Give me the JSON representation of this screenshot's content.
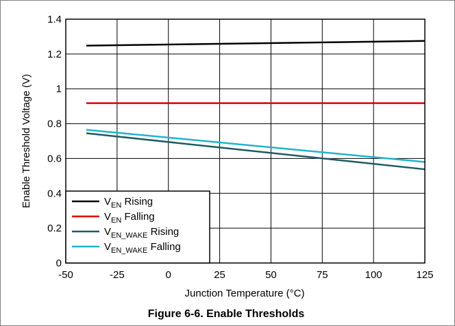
{
  "chart_data": {
    "type": "line",
    "title": "",
    "caption": "Figure 6-6. Enable Thresholds",
    "xlabel": "Junction Temperature (°C)",
    "ylabel": "Enable Threshold Voltage (V)",
    "xlim": [
      -50,
      125
    ],
    "ylim": [
      0,
      1.4
    ],
    "x_ticks": [
      -50,
      -25,
      0,
      25,
      50,
      75,
      100,
      125
    ],
    "y_ticks": [
      0,
      0.2,
      0.4,
      0.6,
      0.8,
      1,
      1.2,
      1.4
    ],
    "x_tick_labels": [
      "-50",
      "-25",
      "0",
      "25",
      "50",
      "75",
      "100",
      "125"
    ],
    "y_tick_labels": [
      "0",
      "0.2",
      "0.4",
      "0.6",
      "0.8",
      "1",
      "1.2",
      "1.4"
    ],
    "grid": true,
    "legend_position": "bottom-left",
    "series": [
      {
        "name": "V_EN Rising",
        "legend_main": "V",
        "legend_sub": "EN",
        "legend_rest": " Rising",
        "color": "#000000",
        "x": [
          -40,
          125
        ],
        "y": [
          1.248,
          1.275
        ]
      },
      {
        "name": "V_EN Falling",
        "legend_main": "V",
        "legend_sub": "EN",
        "legend_rest": " Falling",
        "color": "#e00000",
        "x": [
          -40,
          125
        ],
        "y": [
          0.918,
          0.918
        ]
      },
      {
        "name": "V_EN_WAKE Rising",
        "legend_main": "V",
        "legend_sub": "EN_WAKE",
        "legend_rest": " Rising",
        "color": "#1e5a64",
        "x": [
          -40,
          125
        ],
        "y": [
          0.745,
          0.538
        ]
      },
      {
        "name": "V_EN_WAKE Falling",
        "legend_main": "V",
        "legend_sub": "EN_WAKE",
        "legend_rest": " Falling",
        "color": "#1eb4cc",
        "x": [
          -40,
          125
        ],
        "y": [
          0.765,
          0.58
        ]
      }
    ]
  }
}
